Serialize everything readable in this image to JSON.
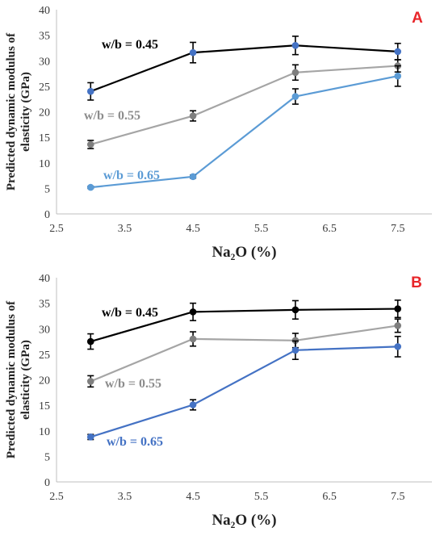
{
  "chart_data": [
    {
      "type": "line",
      "panel_label": "A",
      "xlabel": "Na₂O (%)",
      "ylabel": "Predicted dynamic modulus of elasticity (GPa)",
      "xlim": [
        2.5,
        8.0
      ],
      "ylim": [
        0,
        40
      ],
      "xticks": [
        "2.5",
        "3.5",
        "4.5",
        "5.5",
        "6.5",
        "7.5"
      ],
      "yticks": [
        "0",
        "5",
        "10",
        "15",
        "20",
        "25",
        "30",
        "35",
        "40"
      ],
      "x": [
        3.0,
        4.5,
        6.0,
        7.5
      ],
      "series": [
        {
          "name": "w/b = 0.45",
          "line_color": "#000000",
          "marker_color": "#4472c4",
          "values": [
            24.0,
            31.6,
            33.0,
            31.8
          ],
          "errors": [
            1.7,
            2.0,
            1.8,
            1.6
          ]
        },
        {
          "name": "w/b = 0.55",
          "line_color": "#a5a5a5",
          "marker_color": "#7f7f7f",
          "values": [
            13.6,
            19.2,
            27.7,
            29.0
          ],
          "errors": [
            0.8,
            1.0,
            1.5,
            1.2
          ]
        },
        {
          "name": "w/b = 0.65",
          "line_color": "#5b9bd5",
          "marker_color": "#5b9bd5",
          "values": [
            5.2,
            7.3,
            23.0,
            27.0
          ],
          "errors": [
            0.2,
            0.3,
            1.5,
            2.0
          ]
        }
      ]
    },
    {
      "type": "line",
      "panel_label": "B",
      "xlabel": "Na₂O (%)",
      "ylabel": "Predicted dynamic modulus of elasticity (GPa)",
      "xlim": [
        2.5,
        8.0
      ],
      "ylim": [
        0,
        40
      ],
      "xticks": [
        "2.5",
        "3.5",
        "4.5",
        "5.5",
        "6.5",
        "7.5"
      ],
      "yticks": [
        "0",
        "5",
        "10",
        "15",
        "20",
        "25",
        "30",
        "35",
        "40"
      ],
      "x": [
        3.0,
        4.5,
        6.0,
        7.5
      ],
      "series": [
        {
          "name": "w/b = 0.45",
          "line_color": "#000000",
          "marker_color": "#000000",
          "values": [
            27.5,
            33.3,
            33.7,
            33.9
          ],
          "errors": [
            1.5,
            1.7,
            1.8,
            1.7
          ]
        },
        {
          "name": "w/b = 0.55",
          "line_color": "#a5a5a5",
          "marker_color": "#7f7f7f",
          "values": [
            19.7,
            28.0,
            27.7,
            30.6
          ],
          "errors": [
            1.1,
            1.4,
            1.4,
            1.3
          ]
        },
        {
          "name": "w/b = 0.65",
          "line_color": "#4472c4",
          "marker_color": "#4472c4",
          "values": [
            8.8,
            15.1,
            25.8,
            26.5
          ],
          "errors": [
            0.5,
            1.0,
            1.8,
            2.0
          ]
        }
      ]
    }
  ]
}
